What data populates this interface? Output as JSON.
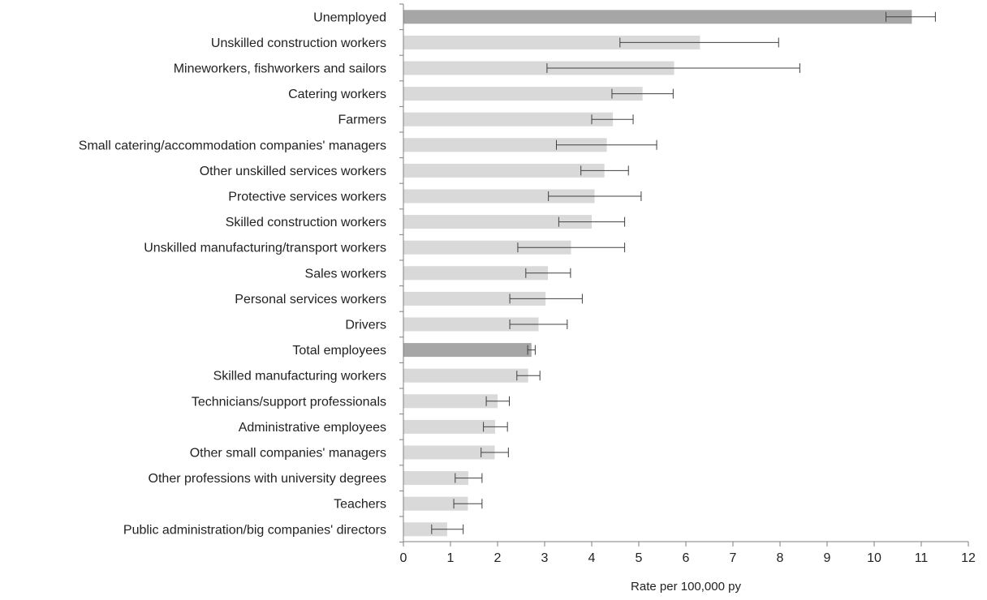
{
  "chart_data": {
    "type": "bar",
    "orientation": "horizontal",
    "title": "",
    "xlabel": "Rate per 100,000 py",
    "ylabel": "",
    "xlim": [
      0,
      12
    ],
    "xticks": [
      "0",
      "1",
      "2",
      "3",
      "4",
      "5",
      "6",
      "7",
      "8",
      "9",
      "10",
      "11",
      "12"
    ],
    "grid": false,
    "legend": "none",
    "colors": {
      "default": "#d9d9d9",
      "highlight": "#a6a6a6",
      "errorbar": "#404040",
      "axis": "#7f7f7f"
    },
    "bars": [
      {
        "label": "Unemployed",
        "value": 10.8,
        "ci_low": 10.25,
        "ci_high": 11.3,
        "highlight": true
      },
      {
        "label": "Unskilled construction workers",
        "value": 6.3,
        "ci_low": 4.6,
        "ci_high": 7.97,
        "highlight": false
      },
      {
        "label": "Mineworkers, fishworkers and sailors",
        "value": 5.75,
        "ci_low": 3.05,
        "ci_high": 8.42,
        "highlight": false
      },
      {
        "label": "Catering workers",
        "value": 5.08,
        "ci_low": 4.43,
        "ci_high": 5.73,
        "highlight": false
      },
      {
        "label": "Farmers",
        "value": 4.45,
        "ci_low": 4.0,
        "ci_high": 4.88,
        "highlight": false
      },
      {
        "label": "Small catering/accommodation companies' managers",
        "value": 4.32,
        "ci_low": 3.25,
        "ci_high": 5.38,
        "highlight": false
      },
      {
        "label": "Other unskilled services workers ",
        "value": 4.27,
        "ci_low": 3.77,
        "ci_high": 4.78,
        "highlight": false
      },
      {
        "label": "Protective services workers",
        "value": 4.06,
        "ci_low": 3.08,
        "ci_high": 5.05,
        "highlight": false
      },
      {
        "label": "Skilled construction workers",
        "value": 4.0,
        "ci_low": 3.3,
        "ci_high": 4.7,
        "highlight": false
      },
      {
        "label": "Unskilled manufacturing/transport workers ",
        "value": 3.56,
        "ci_low": 2.43,
        "ci_high": 4.7,
        "highlight": false
      },
      {
        "label": "Sales workers ",
        "value": 3.07,
        "ci_low": 2.6,
        "ci_high": 3.55,
        "highlight": false
      },
      {
        "label": "Personal services workers",
        "value": 3.02,
        "ci_low": 2.26,
        "ci_high": 3.8,
        "highlight": false
      },
      {
        "label": "Drivers",
        "value": 2.87,
        "ci_low": 2.26,
        "ci_high": 3.48,
        "highlight": false
      },
      {
        "label": "Total employees",
        "value": 2.72,
        "ci_low": 2.64,
        "ci_high": 2.8,
        "highlight": true
      },
      {
        "label": "Skilled manufacturing workers",
        "value": 2.65,
        "ci_low": 2.41,
        "ci_high": 2.9,
        "highlight": false
      },
      {
        "label": "Technicians/support professionals",
        "value": 2.0,
        "ci_low": 1.76,
        "ci_high": 2.25,
        "highlight": false
      },
      {
        "label": "Administrative employees ",
        "value": 1.95,
        "ci_low": 1.7,
        "ci_high": 2.21,
        "highlight": false
      },
      {
        "label": "Other small companies' managers",
        "value": 1.94,
        "ci_low": 1.65,
        "ci_high": 2.23,
        "highlight": false
      },
      {
        "label": "Other professions with university degrees",
        "value": 1.38,
        "ci_low": 1.1,
        "ci_high": 1.67,
        "highlight": false
      },
      {
        "label": "Teachers",
        "value": 1.37,
        "ci_low": 1.07,
        "ci_high": 1.67,
        "highlight": false
      },
      {
        "label": "Public administration/big companies' directors",
        "value": 0.93,
        "ci_low": 0.6,
        "ci_high": 1.27,
        "highlight": false
      }
    ]
  }
}
